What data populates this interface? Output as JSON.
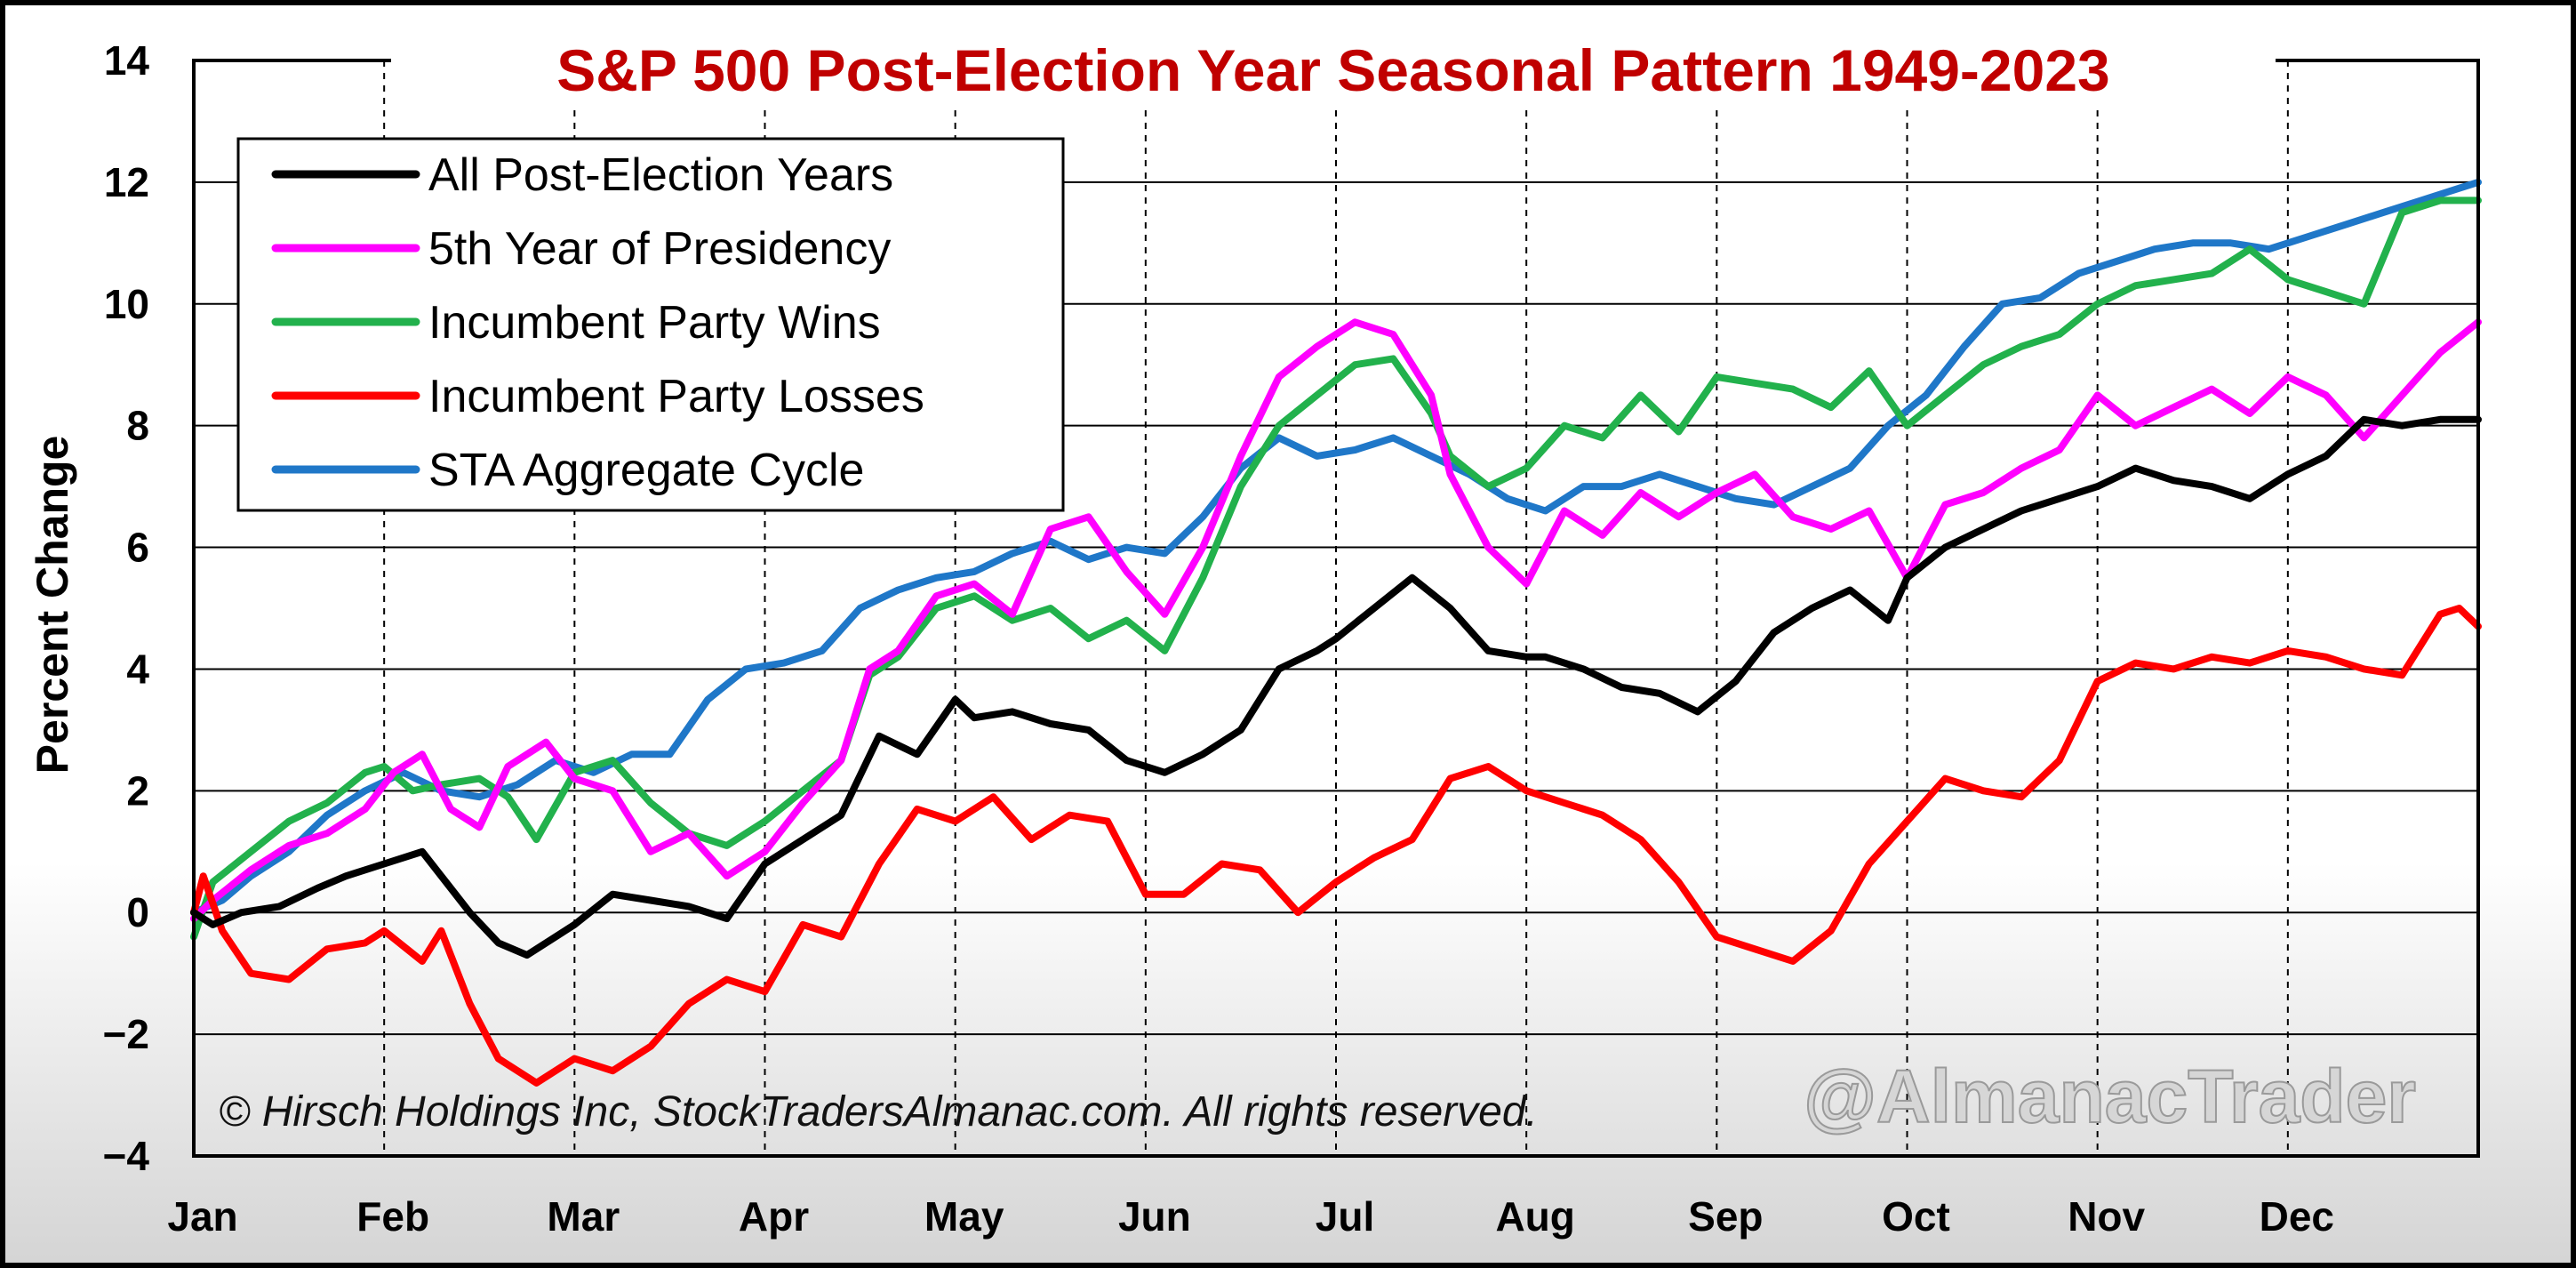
{
  "colors": {
    "title": "#c00000",
    "all_post_election": "#000000",
    "fifth_year": "#ff00ff",
    "incumbent_wins": "#22b14c",
    "incumbent_losses": "#ff0000",
    "sta_aggregate": "#1f77c8"
  },
  "chart_data": {
    "type": "line",
    "title": "S&P 500 Post-Election Year Seasonal Pattern 1949-2023",
    "ylabel": "Percent Change",
    "xlabel": "",
    "ylim": [
      -4,
      14
    ],
    "yticks": [
      14,
      12,
      10,
      8,
      6,
      4,
      2,
      0,
      -2,
      -4
    ],
    "ytick_labels": [
      "14",
      "12",
      "10",
      "8",
      "6",
      "4",
      "2",
      "0",
      "−2",
      "−4"
    ],
    "xlim": [
      0,
      12
    ],
    "categories": [
      "Jan",
      "Feb",
      "Mar",
      "Apr",
      "May",
      "Jun",
      "Jul",
      "Aug",
      "Sep",
      "Oct",
      "Nov",
      "Dec"
    ],
    "grid": true,
    "legend_position": "top-left",
    "copyright": "© Hirsch Holdings Inc, StockTradersAlmanac.com. All rights reserved.",
    "watermark": "@AlmanacTrader",
    "series": [
      {
        "name": "All Post-Election Years",
        "color": "#000000",
        "x": [
          0.0,
          0.1,
          0.25,
          0.45,
          0.65,
          0.8,
          1.0,
          1.2,
          1.3,
          1.45,
          1.6,
          1.75,
          1.9,
          2.0,
          2.2,
          2.4,
          2.6,
          2.8,
          3.0,
          3.2,
          3.4,
          3.6,
          3.8,
          4.0,
          4.1,
          4.3,
          4.5,
          4.7,
          4.9,
          5.1,
          5.3,
          5.5,
          5.7,
          5.9,
          6.0,
          6.2,
          6.4,
          6.6,
          6.8,
          7.0,
          7.1,
          7.3,
          7.5,
          7.7,
          7.9,
          8.1,
          8.3,
          8.5,
          8.7,
          8.9,
          9.0,
          9.2,
          9.4,
          9.6,
          9.8,
          10.0,
          10.2,
          10.4,
          10.6,
          10.8,
          11.0,
          11.2,
          11.4,
          11.6,
          11.8,
          11.9,
          12.0
        ],
        "y": [
          0.0,
          -0.2,
          0.0,
          0.1,
          0.4,
          0.6,
          0.8,
          1.0,
          0.6,
          0.0,
          -0.5,
          -0.7,
          -0.4,
          -0.2,
          0.3,
          0.2,
          0.1,
          -0.1,
          0.8,
          1.2,
          1.6,
          2.9,
          2.6,
          3.5,
          3.2,
          3.3,
          3.1,
          3.0,
          2.5,
          2.3,
          2.6,
          3.0,
          4.0,
          4.3,
          4.5,
          5.0,
          5.5,
          5.0,
          4.3,
          4.2,
          4.2,
          4.0,
          3.7,
          3.6,
          3.3,
          3.8,
          4.6,
          5.0,
          5.3,
          4.8,
          5.5,
          6.0,
          6.3,
          6.6,
          6.8,
          7.0,
          7.3,
          7.1,
          7.0,
          6.8,
          7.2,
          7.5,
          8.1,
          8.0,
          8.1,
          8.1,
          8.1
        ]
      },
      {
        "name": "5th Year of Presidency",
        "color": "#ff00ff",
        "x": [
          0.0,
          0.1,
          0.3,
          0.5,
          0.7,
          0.9,
          1.05,
          1.2,
          1.35,
          1.5,
          1.65,
          1.85,
          2.0,
          2.2,
          2.4,
          2.6,
          2.8,
          3.0,
          3.2,
          3.4,
          3.55,
          3.7,
          3.9,
          4.1,
          4.3,
          4.5,
          4.7,
          4.9,
          5.1,
          5.3,
          5.5,
          5.7,
          5.9,
          6.1,
          6.3,
          6.5,
          6.6,
          6.8,
          7.0,
          7.2,
          7.4,
          7.6,
          7.8,
          8.0,
          8.2,
          8.4,
          8.6,
          8.8,
          9.0,
          9.2,
          9.4,
          9.6,
          9.8,
          10.0,
          10.2,
          10.4,
          10.6,
          10.8,
          11.0,
          11.2,
          11.4,
          11.6,
          11.8,
          12.0
        ],
        "y": [
          -0.1,
          0.2,
          0.7,
          1.1,
          1.3,
          1.7,
          2.3,
          2.6,
          1.7,
          1.4,
          2.4,
          2.8,
          2.2,
          2.0,
          1.0,
          1.3,
          0.6,
          1.0,
          1.8,
          2.5,
          4.0,
          4.3,
          5.2,
          5.4,
          4.9,
          6.3,
          6.5,
          5.6,
          4.9,
          6.0,
          7.5,
          8.8,
          9.3,
          9.7,
          9.5,
          8.5,
          7.2,
          6.0,
          5.4,
          6.6,
          6.2,
          6.9,
          6.5,
          6.9,
          7.2,
          6.5,
          6.3,
          6.6,
          5.5,
          6.7,
          6.9,
          7.3,
          7.6,
          8.5,
          8.0,
          8.3,
          8.6,
          8.2,
          8.8,
          8.5,
          7.8,
          8.5,
          9.2,
          9.7
        ]
      },
      {
        "name": "Incumbent Party Wins",
        "color": "#22b14c",
        "x": [
          0.0,
          0.1,
          0.3,
          0.5,
          0.7,
          0.9,
          1.0,
          1.15,
          1.3,
          1.5,
          1.65,
          1.8,
          2.0,
          2.2,
          2.4,
          2.6,
          2.8,
          3.0,
          3.2,
          3.4,
          3.55,
          3.7,
          3.9,
          4.1,
          4.3,
          4.5,
          4.7,
          4.9,
          5.1,
          5.3,
          5.5,
          5.7,
          5.9,
          6.1,
          6.3,
          6.5,
          6.6,
          6.8,
          7.0,
          7.2,
          7.4,
          7.6,
          7.8,
          8.0,
          8.2,
          8.4,
          8.6,
          8.8,
          9.0,
          9.2,
          9.4,
          9.6,
          9.8,
          10.0,
          10.2,
          10.4,
          10.6,
          10.8,
          11.0,
          11.2,
          11.4,
          11.6,
          11.8,
          12.0
        ],
        "y": [
          -0.4,
          0.5,
          1.0,
          1.5,
          1.8,
          2.3,
          2.4,
          2.0,
          2.1,
          2.2,
          1.9,
          1.2,
          2.3,
          2.5,
          1.8,
          1.3,
          1.1,
          1.5,
          2.0,
          2.5,
          3.9,
          4.2,
          5.0,
          5.2,
          4.8,
          5.0,
          4.5,
          4.8,
          4.3,
          5.5,
          7.0,
          8.0,
          8.5,
          9.0,
          9.1,
          8.2,
          7.5,
          7.0,
          7.3,
          8.0,
          7.8,
          8.5,
          7.9,
          8.8,
          8.7,
          8.6,
          8.3,
          8.9,
          8.0,
          8.5,
          9.0,
          9.3,
          9.5,
          10.0,
          10.3,
          10.4,
          10.5,
          10.9,
          10.4,
          10.2,
          10.0,
          11.5,
          11.7,
          11.7
        ]
      },
      {
        "name": "Incumbent Party Losses",
        "color": "#ff0000",
        "x": [
          0.0,
          0.05,
          0.15,
          0.3,
          0.5,
          0.7,
          0.9,
          1.0,
          1.2,
          1.3,
          1.45,
          1.6,
          1.8,
          2.0,
          2.2,
          2.4,
          2.6,
          2.8,
          3.0,
          3.2,
          3.4,
          3.6,
          3.8,
          4.0,
          4.2,
          4.4,
          4.6,
          4.8,
          5.0,
          5.2,
          5.4,
          5.6,
          5.8,
          6.0,
          6.2,
          6.4,
          6.6,
          6.8,
          7.0,
          7.2,
          7.4,
          7.6,
          7.8,
          8.0,
          8.2,
          8.4,
          8.6,
          8.8,
          9.0,
          9.2,
          9.4,
          9.6,
          9.8,
          10.0,
          10.2,
          10.4,
          10.6,
          10.8,
          11.0,
          11.2,
          11.4,
          11.6,
          11.8,
          11.9,
          12.0
        ],
        "y": [
          0.0,
          0.6,
          -0.3,
          -1.0,
          -1.1,
          -0.6,
          -0.5,
          -0.3,
          -0.8,
          -0.3,
          -1.5,
          -2.4,
          -2.8,
          -2.4,
          -2.6,
          -2.2,
          -1.5,
          -1.1,
          -1.3,
          -0.2,
          -0.4,
          0.8,
          1.7,
          1.5,
          1.9,
          1.2,
          1.6,
          1.5,
          0.3,
          0.3,
          0.8,
          0.7,
          0.0,
          0.5,
          0.9,
          1.2,
          2.2,
          2.4,
          2.0,
          1.8,
          1.6,
          1.2,
          0.5,
          -0.4,
          -0.6,
          -0.8,
          -0.3,
          0.8,
          1.5,
          2.2,
          2.0,
          1.9,
          2.5,
          3.8,
          4.1,
          4.0,
          4.2,
          4.1,
          4.3,
          4.2,
          4.0,
          3.9,
          4.9,
          5.0,
          4.7
        ]
      },
      {
        "name": "STA Aggregate Cycle",
        "color": "#1f77c8",
        "x": [
          0.0,
          0.15,
          0.3,
          0.5,
          0.7,
          0.9,
          1.1,
          1.3,
          1.5,
          1.7,
          1.9,
          2.1,
          2.3,
          2.5,
          2.7,
          2.9,
          3.1,
          3.3,
          3.5,
          3.7,
          3.9,
          4.1,
          4.3,
          4.5,
          4.7,
          4.9,
          5.1,
          5.3,
          5.5,
          5.7,
          5.9,
          6.1,
          6.3,
          6.5,
          6.7,
          6.9,
          7.1,
          7.3,
          7.5,
          7.7,
          7.9,
          8.1,
          8.3,
          8.5,
          8.7,
          8.9,
          9.1,
          9.3,
          9.5,
          9.7,
          9.9,
          10.1,
          10.3,
          10.5,
          10.7,
          10.9,
          11.1,
          11.3,
          11.5,
          11.7,
          11.9,
          12.0
        ],
        "y": [
          0.0,
          0.2,
          0.6,
          1.0,
          1.6,
          2.0,
          2.3,
          2.0,
          1.9,
          2.1,
          2.5,
          2.3,
          2.6,
          2.6,
          3.5,
          4.0,
          4.1,
          4.3,
          5.0,
          5.3,
          5.5,
          5.6,
          5.9,
          6.1,
          5.8,
          6.0,
          5.9,
          6.5,
          7.3,
          7.8,
          7.5,
          7.6,
          7.8,
          7.5,
          7.2,
          6.8,
          6.6,
          7.0,
          7.0,
          7.2,
          7.0,
          6.8,
          6.7,
          7.0,
          7.3,
          8.0,
          8.5,
          9.3,
          10.0,
          10.1,
          10.5,
          10.7,
          10.9,
          11.0,
          11.0,
          10.9,
          11.1,
          11.3,
          11.5,
          11.7,
          11.9,
          12.0
        ]
      }
    ]
  }
}
